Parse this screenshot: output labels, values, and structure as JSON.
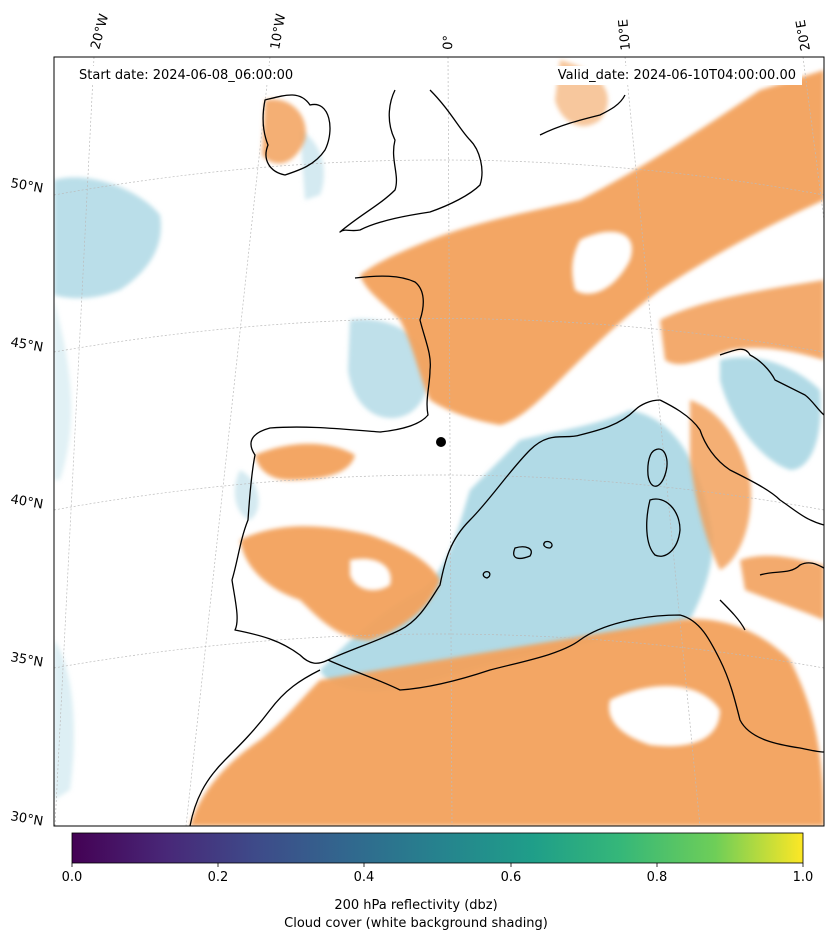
{
  "header": {
    "start_date": "Start date: 2024-06-08_06:00:00",
    "valid_date": "Valid_date: 2024-06-10T04:00:00.00"
  },
  "map": {
    "projection": "conic",
    "meridian_labels": [
      "20°W",
      "10°W",
      "0°",
      "10°E",
      "20°E"
    ],
    "parallel_labels": [
      "50°N",
      "45°N",
      "40°N",
      "35°N",
      "30°N"
    ],
    "colors": {
      "cloud_orange": "#f2a15c",
      "reflect_blue": "#a9d6e3",
      "coast": "#000000",
      "grid": "#bbbbbb"
    }
  },
  "colorbar": {
    "ticks": [
      "0.0",
      "0.2",
      "0.4",
      "0.6",
      "0.8",
      "1.0"
    ],
    "range": [
      0.0,
      1.0
    ],
    "colormap": "viridis",
    "label_line1": "200 hPa reflectivity (dbz)",
    "label_line2": "Cloud cover (white background shading)"
  }
}
